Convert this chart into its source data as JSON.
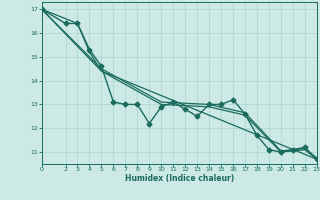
{
  "title": "",
  "xlabel": "Humidex (Indice chaleur)",
  "ylabel": "",
  "background_color": "#cce9e5",
  "grid_color": "#aad4cf",
  "line_color": "#1a6b5e",
  "xlim": [
    0,
    23
  ],
  "ylim": [
    10.5,
    17.3
  ],
  "yticks": [
    11,
    12,
    13,
    14,
    15,
    16,
    17
  ],
  "xticks": [
    0,
    2,
    3,
    4,
    5,
    6,
    7,
    8,
    9,
    10,
    11,
    12,
    13,
    14,
    15,
    16,
    17,
    18,
    19,
    20,
    21,
    22,
    23
  ],
  "series": [
    {
      "x": [
        0,
        2,
        3,
        4,
        5,
        6,
        7,
        8,
        9,
        10,
        11,
        12,
        13,
        14,
        15,
        16,
        17,
        18,
        19,
        20,
        21,
        22,
        23
      ],
      "y": [
        17.0,
        16.4,
        16.4,
        15.3,
        14.6,
        13.1,
        13.0,
        13.0,
        12.2,
        12.9,
        13.1,
        12.8,
        12.5,
        13.0,
        13.0,
        13.2,
        12.6,
        11.7,
        11.1,
        11.0,
        11.1,
        11.2,
        10.7
      ],
      "marker": "D",
      "markersize": 2.5,
      "linewidth": 1.0
    },
    {
      "x": [
        0,
        3,
        4,
        5,
        23
      ],
      "y": [
        17.0,
        16.4,
        15.2,
        14.4,
        10.7
      ],
      "marker": null,
      "linewidth": 0.9
    },
    {
      "x": [
        0,
        5,
        10,
        14,
        17,
        20,
        22,
        23
      ],
      "y": [
        17.0,
        14.4,
        13.0,
        12.9,
        12.55,
        11.0,
        11.1,
        10.7
      ],
      "marker": null,
      "linewidth": 0.9
    },
    {
      "x": [
        0,
        5,
        10,
        14,
        17,
        20,
        22,
        23
      ],
      "y": [
        17.0,
        14.5,
        13.1,
        13.0,
        12.65,
        11.05,
        11.15,
        10.75
      ],
      "marker": null,
      "linewidth": 0.9
    }
  ]
}
